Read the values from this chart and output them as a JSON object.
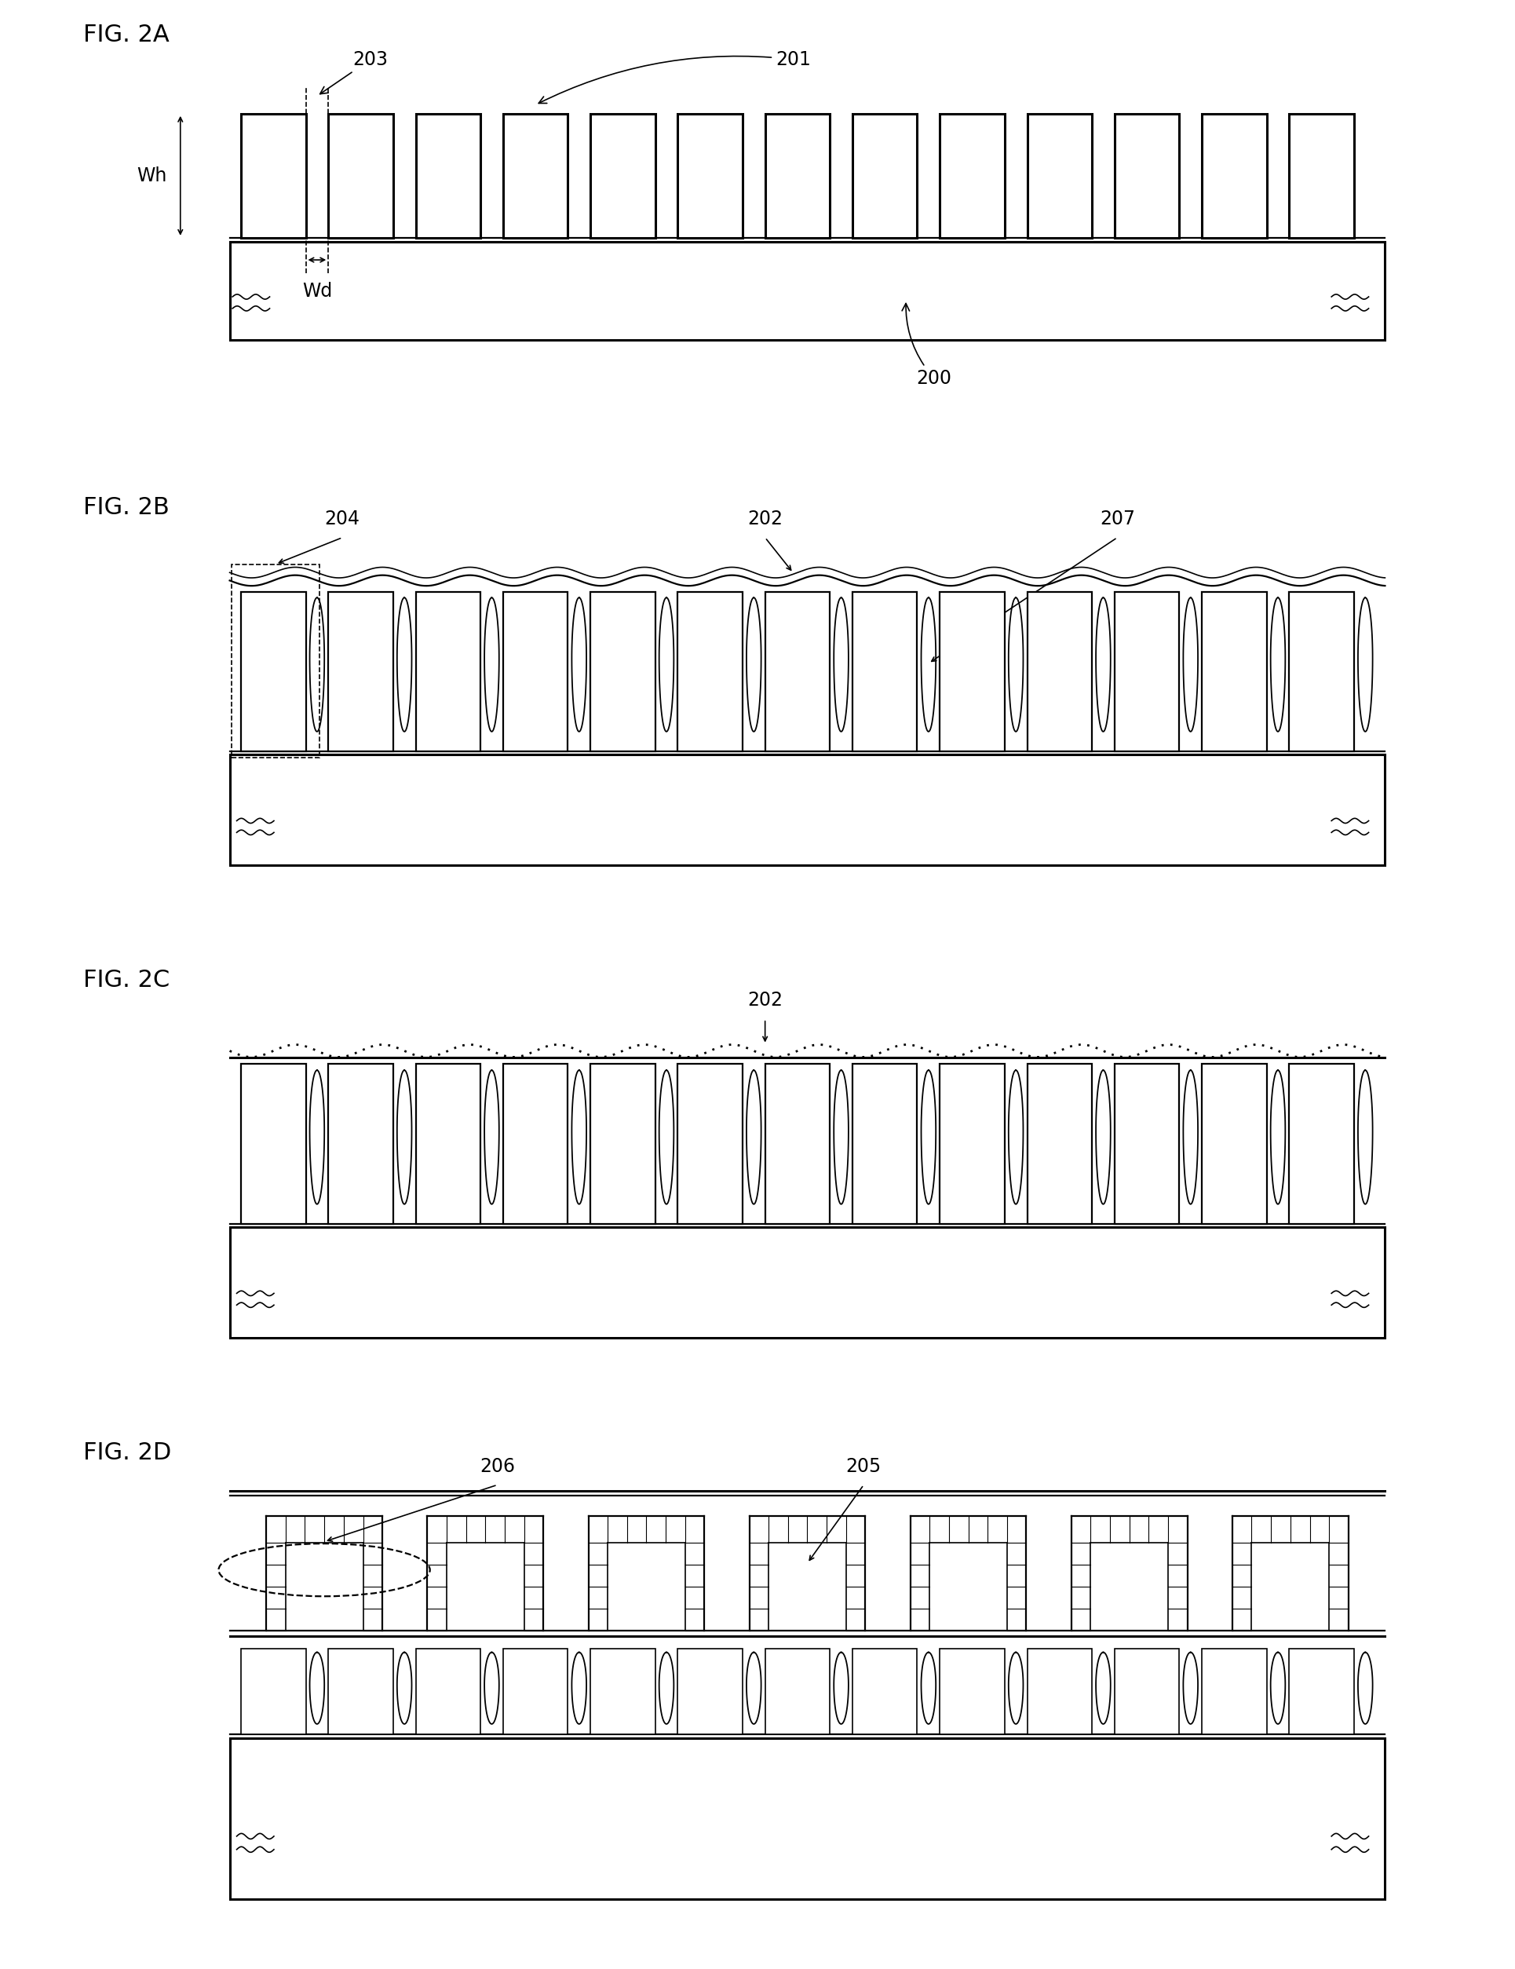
{
  "bg_color": "#ffffff",
  "line_color": "#000000",
  "fig_labels": [
    "FIG. 2A",
    "FIG. 2B",
    "FIG. 2C",
    "FIG. 2D"
  ],
  "lw_heavy": 2.2,
  "lw_med": 1.6,
  "lw_light": 1.2,
  "font_label": 22,
  "font_annot": 16
}
